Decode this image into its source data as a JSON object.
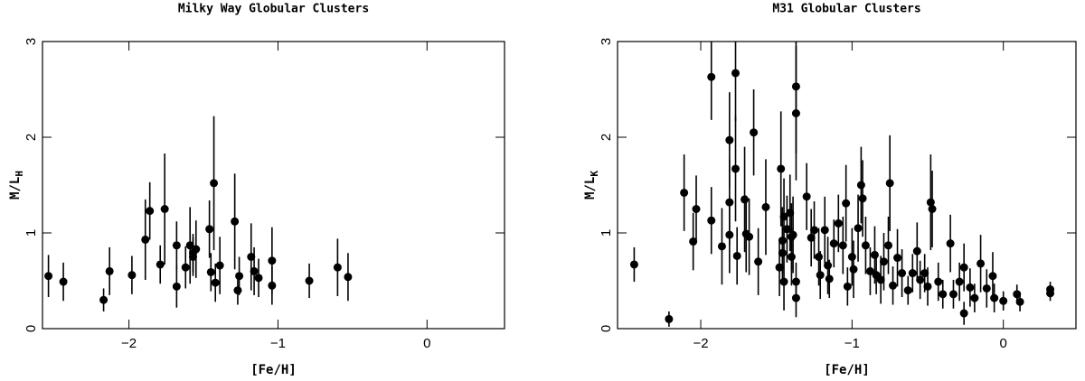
{
  "chart_data": [
    {
      "type": "scatter",
      "title": "Milky Way Globular Clusters",
      "xlabel": "[Fe/H]",
      "ylabel": {
        "main": "M/L",
        "sub": "H"
      },
      "xlim": [
        -2.58,
        0.52
      ],
      "ylim": [
        0,
        3
      ],
      "xticks": [
        {
          "value": -2,
          "label": "−2"
        },
        {
          "value": -1,
          "label": "−1"
        },
        0
      ],
      "yticks": [
        0,
        1,
        2,
        3
      ],
      "color": "#000000",
      "x": [
        -2.54,
        -2.44,
        -2.17,
        -2.13,
        -1.98,
        -1.89,
        -1.86,
        -1.79,
        -1.76,
        -1.68,
        -1.68,
        -1.62,
        -1.59,
        -1.57,
        -1.57,
        -1.55,
        -1.46,
        -1.45,
        -1.43,
        -1.42,
        -1.39,
        -1.29,
        -1.27,
        -1.26,
        -1.18,
        -1.16,
        -1.13,
        -1.04,
        -1.04,
        -0.79,
        -0.6,
        -0.53
      ],
      "values": [
        0.55,
        0.49,
        0.3,
        0.6,
        0.56,
        0.93,
        1.23,
        0.67,
        1.25,
        0.44,
        0.87,
        0.64,
        0.87,
        0.79,
        0.75,
        0.83,
        1.04,
        0.59,
        1.52,
        0.48,
        0.66,
        1.12,
        0.4,
        0.55,
        0.75,
        0.6,
        0.53,
        0.71,
        0.45,
        0.5,
        0.64,
        0.54
      ],
      "errors": [
        0.22,
        0.2,
        0.12,
        0.25,
        0.2,
        0.42,
        0.3,
        0.2,
        0.58,
        0.22,
        0.25,
        0.22,
        0.4,
        0.2,
        0.2,
        0.3,
        0.3,
        0.2,
        0.7,
        0.2,
        0.3,
        0.5,
        0.15,
        0.2,
        0.35,
        0.25,
        0.2,
        0.35,
        0.2,
        0.18,
        0.3,
        0.25
      ]
    },
    {
      "type": "scatter",
      "title": "M31 Globular Clusters",
      "xlabel": "[Fe/H]",
      "ylabel": {
        "main": "M/L",
        "sub": "K"
      },
      "xlim": [
        -2.55,
        0.48
      ],
      "ylim": [
        0,
        3
      ],
      "xticks": [
        {
          "value": -2,
          "label": "−2"
        },
        {
          "value": -1,
          "label": "−1"
        },
        0
      ],
      "yticks": [
        0,
        1,
        2,
        3
      ],
      "color": "#000000",
      "x": [
        -2.44,
        -2.21,
        -2.11,
        -2.05,
        -2.03,
        -1.93,
        -1.93,
        -1.86,
        -1.81,
        -1.81,
        -1.81,
        -1.77,
        -1.77,
        -1.76,
        -1.71,
        -1.7,
        -1.68,
        -1.65,
        -1.62,
        -1.57,
        -1.48,
        -1.47,
        -1.46,
        -1.46,
        -1.45,
        -1.45,
        -1.43,
        -1.41,
        -1.4,
        -1.4,
        -1.39,
        -1.37,
        -1.37,
        -1.37,
        -1.37,
        -1.3,
        -1.27,
        -1.25,
        -1.22,
        -1.21,
        -1.18,
        -1.16,
        -1.15,
        -1.12,
        -1.09,
        -1.06,
        -1.04,
        -1.03,
        -1.0,
        -0.99,
        -0.96,
        -0.94,
        -0.93,
        -0.91,
        -0.88,
        -0.85,
        -0.84,
        -0.81,
        -0.79,
        -0.76,
        -0.75,
        -0.73,
        -0.7,
        -0.67,
        -0.63,
        -0.6,
        -0.57,
        -0.55,
        -0.52,
        -0.5,
        -0.48,
        -0.47,
        -0.43,
        -0.4,
        -0.35,
        -0.33,
        -0.29,
        -0.26,
        -0.26,
        -0.22,
        -0.19,
        -0.15,
        -0.11,
        -0.07,
        -0.06,
        0.0,
        0.09,
        0.11,
        0.31,
        0.31
      ],
      "values": [
        0.67,
        0.1,
        1.42,
        0.91,
        1.25,
        1.13,
        2.63,
        0.86,
        1.32,
        1.97,
        0.98,
        2.67,
        1.67,
        0.76,
        1.35,
        0.99,
        0.96,
        2.05,
        0.7,
        1.27,
        0.64,
        1.67,
        0.79,
        0.92,
        1.17,
        0.49,
        1.04,
        1.21,
        0.75,
        0.96,
        0.98,
        2.53,
        2.25,
        0.32,
        0.49,
        1.38,
        0.95,
        1.03,
        0.75,
        0.56,
        1.03,
        0.66,
        0.52,
        0.89,
        1.1,
        0.87,
        1.31,
        0.44,
        0.75,
        0.62,
        1.05,
        1.5,
        1.36,
        0.87,
        0.6,
        0.77,
        0.56,
        0.51,
        0.7,
        0.87,
        1.52,
        0.45,
        0.74,
        0.58,
        0.4,
        0.58,
        0.81,
        0.51,
        0.58,
        0.44,
        1.32,
        1.25,
        0.49,
        0.36,
        0.89,
        0.36,
        0.49,
        0.64,
        0.16,
        0.43,
        0.32,
        0.68,
        0.42,
        0.55,
        0.32,
        0.29,
        0.36,
        0.28,
        0.37,
        0.41
      ],
      "errors": [
        0.18,
        0.08,
        0.4,
        0.3,
        0.35,
        0.35,
        0.45,
        0.4,
        0.45,
        0.5,
        0.4,
        0.5,
        0.55,
        0.3,
        0.55,
        0.4,
        0.4,
        0.45,
        0.35,
        0.5,
        0.3,
        0.6,
        0.3,
        0.35,
        0.4,
        0.3,
        0.35,
        0.4,
        0.3,
        0.35,
        0.4,
        0.7,
        0.7,
        0.2,
        0.2,
        0.35,
        0.3,
        0.3,
        0.3,
        0.25,
        0.35,
        0.3,
        0.2,
        0.25,
        0.3,
        0.3,
        0.4,
        0.2,
        0.3,
        0.3,
        0.35,
        0.4,
        0.4,
        0.3,
        0.25,
        0.3,
        0.2,
        0.25,
        0.3,
        0.3,
        0.5,
        0.2,
        0.3,
        0.25,
        0.15,
        0.2,
        0.3,
        0.2,
        0.2,
        0.2,
        0.5,
        0.4,
        0.2,
        0.15,
        0.3,
        0.15,
        0.2,
        0.25,
        0.12,
        0.2,
        0.15,
        0.3,
        0.2,
        0.25,
        0.15,
        0.1,
        0.1,
        0.1,
        0.08,
        0.08
      ]
    }
  ]
}
